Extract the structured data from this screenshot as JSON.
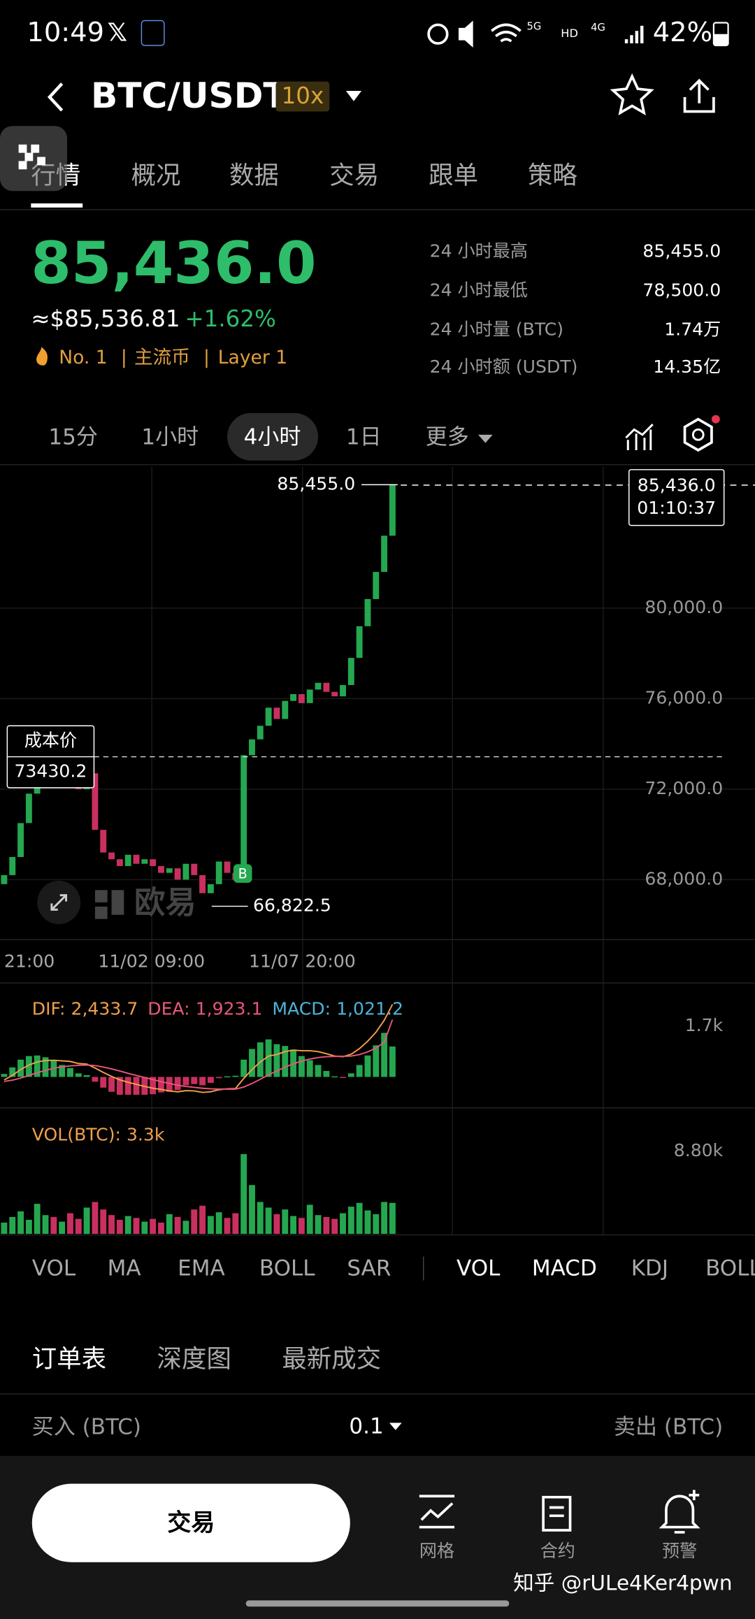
{
  "status_bar": {
    "time": "10:49",
    "network": [
      "5G",
      "HD",
      "4G"
    ],
    "battery": "42%"
  },
  "header": {
    "title": "BTC/USDT",
    "leverage": "10x"
  },
  "tabs": [
    "行情",
    "概况",
    "数据",
    "交易",
    "跟单",
    "策略"
  ],
  "ticker": {
    "price": "85,436.0",
    "usd_price": "≈$85,536.81",
    "change": "+1.62%",
    "tags": [
      "No. 1",
      "主流币",
      "Layer 1"
    ],
    "stats": [
      [
        "24 小时最高",
        "85,455.0"
      ],
      [
        "24 小时最低",
        "78,500.0"
      ],
      [
        "24 小时量 (BTC)",
        "1.74万"
      ],
      [
        "24 小时额 (USDT)",
        "14.35亿"
      ]
    ]
  },
  "intervals": [
    "15分",
    "1小时",
    "4小时",
    "1日",
    "更多"
  ],
  "chart_data": {
    "type": "candlestick",
    "colors": {
      "up": "#25a750",
      "down": "#c9305f"
    },
    "open": [
      67800,
      68200,
      69000,
      70500,
      71800,
      72300,
      72600,
      72400,
      72800,
      72500,
      72000,
      72700,
      70200,
      69200,
      68900,
      68600,
      69100,
      68700,
      68900,
      68600,
      68300,
      68500,
      68000,
      68700,
      68200,
      67400,
      67800,
      68800,
      68300,
      68000,
      73500,
      74200,
      74800,
      75600,
      75100,
      75900,
      76200,
      75800,
      76400,
      76700,
      76300,
      76100,
      76600,
      77800,
      79200,
      80400,
      81600,
      83200
    ],
    "close": [
      68200,
      69000,
      70500,
      71800,
      72300,
      72600,
      72400,
      72800,
      72500,
      72000,
      72700,
      70200,
      69200,
      68900,
      68600,
      69100,
      68700,
      68900,
      68600,
      68300,
      68500,
      68000,
      68700,
      68200,
      67400,
      67800,
      68800,
      68300,
      68000,
      73500,
      74200,
      74800,
      75600,
      75100,
      75900,
      76200,
      75800,
      76400,
      76700,
      76300,
      76100,
      76600,
      77800,
      79200,
      80400,
      81600,
      83200,
      85436
    ],
    "ylim": [
      65350,
      86250
    ],
    "yticks": [
      {
        "value": 80000,
        "label": "80,000.0"
      },
      {
        "value": 76000,
        "label": "76,000.0"
      },
      {
        "value": 72000,
        "label": "72,000.0"
      },
      {
        "value": 68000,
        "label": "68,000.0"
      }
    ],
    "xticks": [
      "21:00",
      "11/02 09:00",
      "11/07 20:00"
    ],
    "high": {
      "value": 85455,
      "label": "85,455.0"
    },
    "low": {
      "value": 66822.5,
      "label": "66,822.5"
    },
    "last": {
      "value": 85436,
      "label": "85,436.0"
    },
    "countdown": "01:10:37",
    "cost": {
      "label": "成本价",
      "value": 73430.2
    },
    "buy_marker": "B",
    "watermark": "欧易",
    "macd": {
      "legend": [
        "DIF: 2,433.7",
        "DEA: 1,923.1",
        "MACD: 1,021.2"
      ],
      "colors": [
        "#f0a04b",
        "#e8577a",
        "#4fb3d9"
      ],
      "ylim": [
        -1040,
        3050
      ],
      "yticks": [
        {
          "value": 1700,
          "label": "1.7k"
        }
      ],
      "dif": [
        -100,
        50,
        250,
        400,
        500,
        550,
        560,
        540,
        520,
        450,
        430,
        300,
        150,
        20,
        -100,
        -180,
        -250,
        -320,
        -380,
        -420,
        -470,
        -500,
        -460,
        -470,
        -520,
        -500,
        -430,
        -400,
        -390,
        -50,
        250,
        500,
        700,
        750,
        850,
        900,
        880,
        880,
        850,
        780,
        700,
        680,
        760,
        950,
        1200,
        1500,
        1900,
        2433.7
      ],
      "dea": [
        -150,
        -110,
        -40,
        50,
        140,
        220,
        290,
        340,
        370,
        390,
        400,
        380,
        330,
        270,
        200,
        120,
        50,
        -20,
        -90,
        -160,
        -220,
        -280,
        -320,
        -350,
        -380,
        -400,
        -410,
        -410,
        -410,
        -340,
        -220,
        -80,
        70,
        200,
        330,
        440,
        530,
        600,
        650,
        680,
        690,
        690,
        700,
        750,
        840,
        970,
        1160,
        1923.1
      ],
      "hist": [
        100,
        320,
        580,
        700,
        720,
        660,
        540,
        400,
        300,
        120,
        60,
        -160,
        -360,
        -500,
        -600,
        -600,
        -600,
        -600,
        -580,
        -520,
        -500,
        -440,
        -280,
        -240,
        -280,
        -200,
        -40,
        20,
        40,
        580,
        940,
        1160,
        1260,
        1100,
        1040,
        920,
        700,
        560,
        400,
        200,
        20,
        -20,
        120,
        400,
        720,
        1060,
        1480,
        1021.2
      ]
    },
    "volume": {
      "legend": "VOL(BTC): 3.3k",
      "color": "#f0a04b",
      "ylim": [
        0,
        12870
      ],
      "yticks": [
        {
          "value": 8800,
          "label": "8.80k"
        }
      ],
      "values": [
        1200,
        1800,
        2400,
        1500,
        3200,
        2000,
        1800,
        1300,
        2200,
        1600,
        2800,
        3400,
        2600,
        2000,
        1500,
        1900,
        1700,
        1300,
        1600,
        1200,
        2100,
        1800,
        1400,
        2600,
        3000,
        1900,
        2300,
        1700,
        2200,
        8500,
        5200,
        3400,
        2800,
        2100,
        2600,
        1900,
        1700,
        3100,
        2000,
        1800,
        1600,
        2200,
        2900,
        3300,
        2500,
        2100,
        3400,
        3300
      ]
    }
  },
  "indicator_tabs": {
    "main": [
      "VOL",
      "MA",
      "EMA",
      "BOLL",
      "SAR"
    ],
    "sub": [
      "VOL",
      "MACD",
      "KDJ",
      "BOLL"
    ]
  },
  "order_book": {
    "tabs": [
      "订单表",
      "深度图",
      "最新成交"
    ],
    "buy": "买入 (BTC)",
    "size": "0.1",
    "sell": "卖出 (BTC)"
  },
  "bottom_bar": {
    "trade": "交易",
    "items": [
      "网格",
      "合约",
      "预警"
    ]
  },
  "watermark": "知乎 @rULe4Ker4pwn"
}
